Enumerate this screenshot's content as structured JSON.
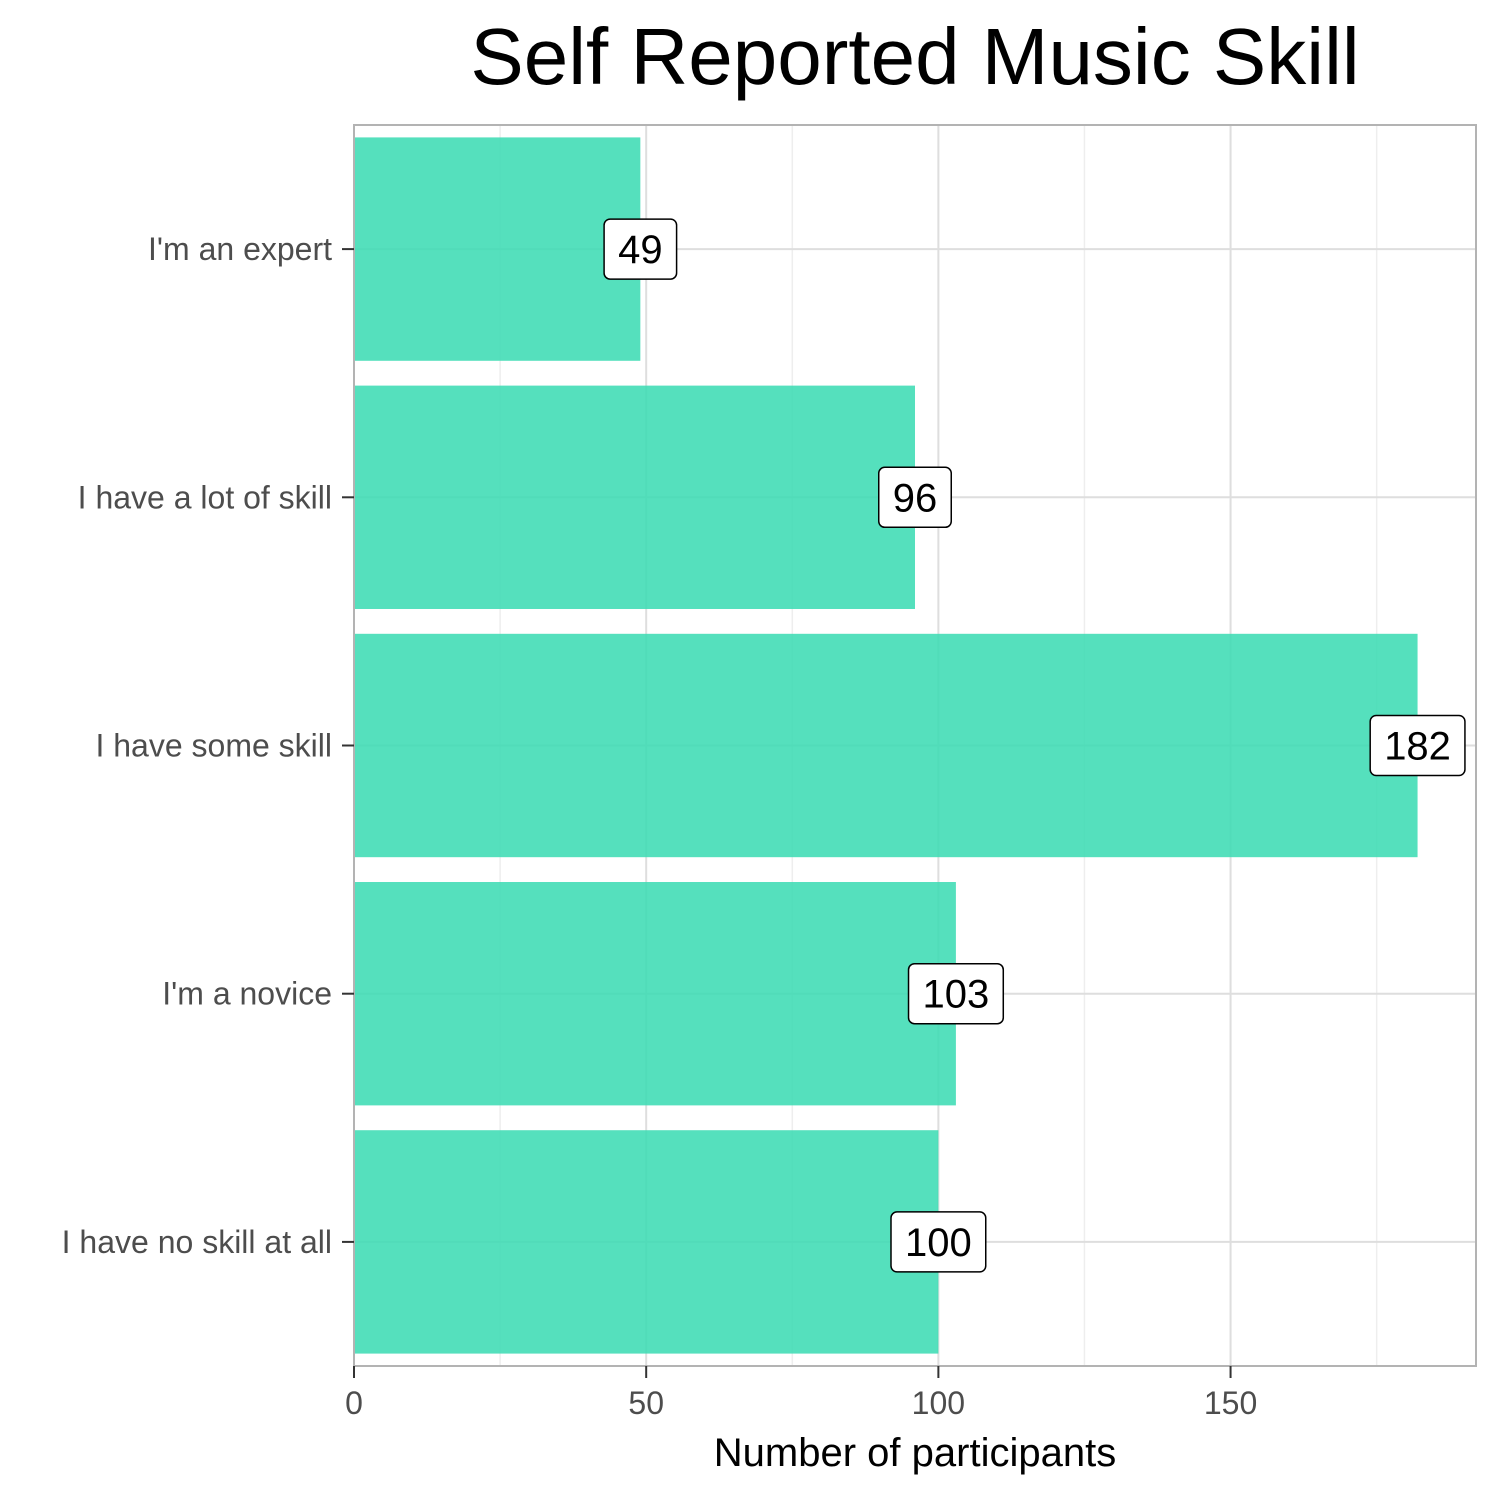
{
  "chart_data": {
    "type": "bar",
    "orientation": "horizontal",
    "title": "Self Reported Music Skill",
    "xlabel": "Number of participants",
    "ylabel": "",
    "categories": [
      "I'm an expert",
      "I have a lot of skill",
      "I have some skill",
      "I'm a novice",
      "I have no skill at all"
    ],
    "values": [
      49,
      96,
      182,
      103,
      100
    ],
    "data_labels": [
      "49",
      "96",
      "182",
      "103",
      "100"
    ],
    "xlim": [
      0,
      192
    ],
    "x_ticks": [
      0,
      50,
      100,
      150
    ],
    "x_tick_labels": [
      "0",
      "50",
      "100",
      "150"
    ],
    "grid": true,
    "legend": "none",
    "colors": {
      "bar": "#3ddcb4",
      "grid_major": "#dedede",
      "grid_minor": "#eeeeee",
      "panel_border": "#b3b3b3",
      "tick_text": "#4d4d4d",
      "label_border": "#000000"
    }
  }
}
